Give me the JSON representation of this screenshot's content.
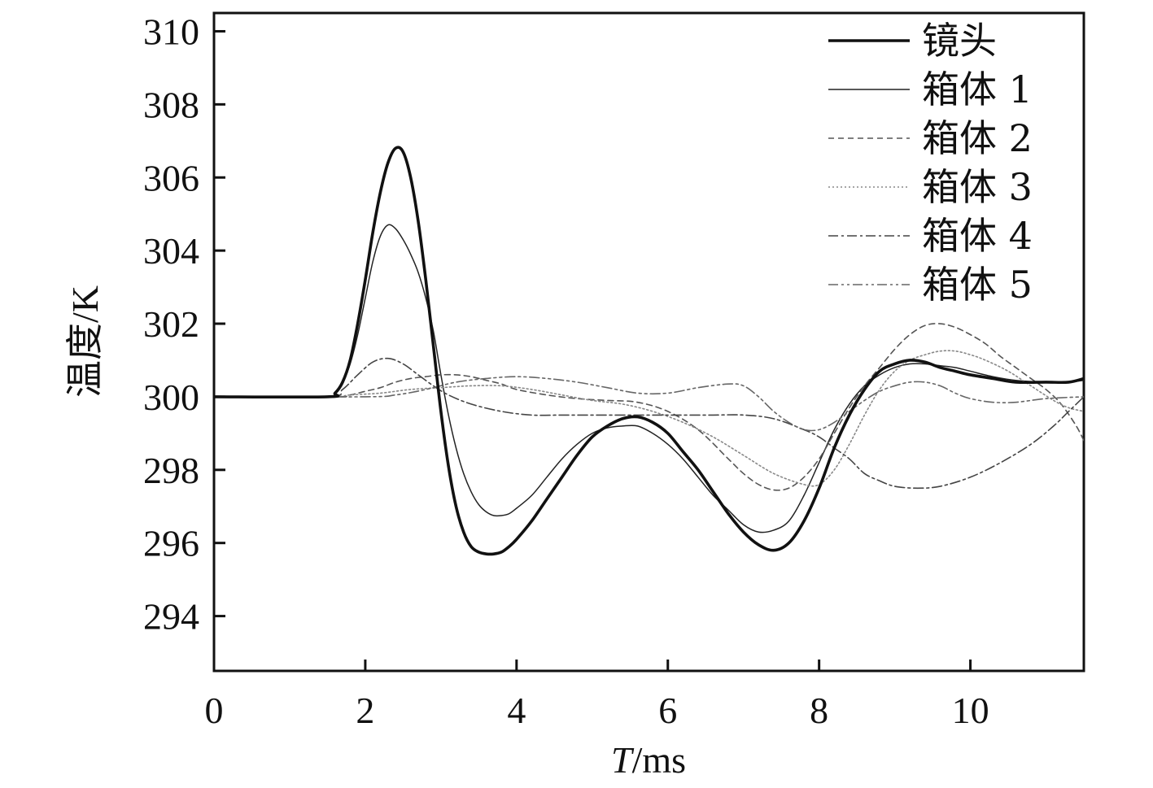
{
  "chart_data": {
    "type": "line",
    "xlabel": "T/ms",
    "xlabel_parts": {
      "italic": "T",
      "rest": "/ms"
    },
    "ylabel": "温度/K",
    "xlim": [
      0,
      11.5
    ],
    "ylim": [
      292.5,
      310.5
    ],
    "xticks": [
      0,
      2,
      4,
      6,
      8,
      10
    ],
    "yticks": [
      294,
      296,
      298,
      300,
      302,
      304,
      306,
      308,
      310
    ],
    "grid": false,
    "legend_position": "top-right",
    "series": [
      {
        "name": "镜头",
        "color": "#111111",
        "style": "solid-thick",
        "points": [
          [
            0,
            300
          ],
          [
            1.5,
            300
          ],
          [
            1.6,
            300.1
          ],
          [
            1.7,
            300.4
          ],
          [
            1.8,
            301
          ],
          [
            1.9,
            302
          ],
          [
            2.0,
            303.2
          ],
          [
            2.1,
            304.5
          ],
          [
            2.2,
            305.6
          ],
          [
            2.3,
            306.4
          ],
          [
            2.4,
            306.8
          ],
          [
            2.5,
            306.7
          ],
          [
            2.6,
            306.0
          ],
          [
            2.7,
            304.8
          ],
          [
            2.8,
            303.2
          ],
          [
            2.9,
            301.4
          ],
          [
            3.0,
            299.6
          ],
          [
            3.1,
            298.1
          ],
          [
            3.2,
            297.0
          ],
          [
            3.3,
            296.3
          ],
          [
            3.4,
            295.9
          ],
          [
            3.5,
            295.75
          ],
          [
            3.6,
            295.7
          ],
          [
            3.7,
            295.7
          ],
          [
            3.8,
            295.75
          ],
          [
            3.9,
            295.9
          ],
          [
            4.0,
            296.1
          ],
          [
            4.2,
            296.6
          ],
          [
            4.4,
            297.2
          ],
          [
            4.6,
            297.8
          ],
          [
            4.8,
            298.4
          ],
          [
            5.0,
            298.9
          ],
          [
            5.2,
            299.2
          ],
          [
            5.4,
            299.4
          ],
          [
            5.6,
            299.45
          ],
          [
            5.8,
            299.3
          ],
          [
            6.0,
            299.0
          ],
          [
            6.2,
            298.5
          ],
          [
            6.4,
            298.0
          ],
          [
            6.6,
            297.4
          ],
          [
            6.8,
            296.8
          ],
          [
            7.0,
            296.3
          ],
          [
            7.2,
            295.95
          ],
          [
            7.4,
            295.8
          ],
          [
            7.6,
            296.0
          ],
          [
            7.8,
            296.6
          ],
          [
            8.0,
            297.5
          ],
          [
            8.2,
            298.6
          ],
          [
            8.4,
            299.5
          ],
          [
            8.6,
            300.2
          ],
          [
            8.8,
            300.7
          ],
          [
            9.0,
            300.9
          ],
          [
            9.2,
            301.0
          ],
          [
            9.4,
            300.95
          ],
          [
            9.6,
            300.8
          ],
          [
            9.8,
            300.7
          ],
          [
            10.0,
            300.6
          ],
          [
            10.3,
            300.5
          ],
          [
            10.6,
            300.4
          ],
          [
            11.0,
            300.4
          ],
          [
            11.3,
            300.4
          ],
          [
            11.5,
            300.5
          ]
        ]
      },
      {
        "name": "箱体 1",
        "color": "#222222",
        "style": "solid-thin",
        "points": [
          [
            0,
            300
          ],
          [
            1.5,
            300
          ],
          [
            1.6,
            300.1
          ],
          [
            1.7,
            300.4
          ],
          [
            1.8,
            300.9
          ],
          [
            1.9,
            301.7
          ],
          [
            2.0,
            302.7
          ],
          [
            2.1,
            303.7
          ],
          [
            2.2,
            304.4
          ],
          [
            2.3,
            304.7
          ],
          [
            2.4,
            304.6
          ],
          [
            2.5,
            304.3
          ],
          [
            2.6,
            303.9
          ],
          [
            2.7,
            303.4
          ],
          [
            2.8,
            302.7
          ],
          [
            2.9,
            301.8
          ],
          [
            3.0,
            300.6
          ],
          [
            3.1,
            299.5
          ],
          [
            3.2,
            298.6
          ],
          [
            3.3,
            297.9
          ],
          [
            3.4,
            297.4
          ],
          [
            3.5,
            297.05
          ],
          [
            3.6,
            296.85
          ],
          [
            3.7,
            296.75
          ],
          [
            3.8,
            296.75
          ],
          [
            3.9,
            296.8
          ],
          [
            4.0,
            296.95
          ],
          [
            4.2,
            297.3
          ],
          [
            4.4,
            297.8
          ],
          [
            4.6,
            298.3
          ],
          [
            4.8,
            298.7
          ],
          [
            5.0,
            299.0
          ],
          [
            5.2,
            299.15
          ],
          [
            5.4,
            299.2
          ],
          [
            5.6,
            299.2
          ],
          [
            5.8,
            299.0
          ],
          [
            6.0,
            298.7
          ],
          [
            6.2,
            298.3
          ],
          [
            6.4,
            297.8
          ],
          [
            6.6,
            297.3
          ],
          [
            6.8,
            296.9
          ],
          [
            7.0,
            296.5
          ],
          [
            7.2,
            296.3
          ],
          [
            7.4,
            296.35
          ],
          [
            7.6,
            296.6
          ],
          [
            7.8,
            297.3
          ],
          [
            8.0,
            298.2
          ],
          [
            8.2,
            299.1
          ],
          [
            8.4,
            299.8
          ],
          [
            8.6,
            300.3
          ],
          [
            8.8,
            300.6
          ],
          [
            9.0,
            300.8
          ],
          [
            9.2,
            300.9
          ],
          [
            9.4,
            300.9
          ],
          [
            9.6,
            300.85
          ],
          [
            9.8,
            300.8
          ],
          [
            10.0,
            300.7
          ],
          [
            10.3,
            300.55
          ],
          [
            10.6,
            300.45
          ],
          [
            11.0,
            300.4
          ],
          [
            11.3,
            300.4
          ],
          [
            11.5,
            300.45
          ]
        ]
      },
      {
        "name": "箱体 2",
        "color": "#555555",
        "style": "dashed",
        "points": [
          [
            0,
            300
          ],
          [
            1.6,
            300
          ],
          [
            1.8,
            300.05
          ],
          [
            2.0,
            300.15
          ],
          [
            2.2,
            300.25
          ],
          [
            2.4,
            300.4
          ],
          [
            2.6,
            300.5
          ],
          [
            2.8,
            300.55
          ],
          [
            3.0,
            300.6
          ],
          [
            3.2,
            300.6
          ],
          [
            3.4,
            300.55
          ],
          [
            3.6,
            300.45
          ],
          [
            3.8,
            300.35
          ],
          [
            4.0,
            300.2
          ],
          [
            4.4,
            300.05
          ],
          [
            4.8,
            299.95
          ],
          [
            5.2,
            299.9
          ],
          [
            5.6,
            299.85
          ],
          [
            6.0,
            299.6
          ],
          [
            6.4,
            299.1
          ],
          [
            6.8,
            298.3
          ],
          [
            7.0,
            297.9
          ],
          [
            7.2,
            297.6
          ],
          [
            7.4,
            297.45
          ],
          [
            7.6,
            297.5
          ],
          [
            7.8,
            297.8
          ],
          [
            8.0,
            298.3
          ],
          [
            8.2,
            299.0
          ],
          [
            8.4,
            299.7
          ],
          [
            8.6,
            300.3
          ],
          [
            8.8,
            300.8
          ],
          [
            9.0,
            301.3
          ],
          [
            9.2,
            301.7
          ],
          [
            9.4,
            301.95
          ],
          [
            9.6,
            302.0
          ],
          [
            9.8,
            301.9
          ],
          [
            10.0,
            301.7
          ],
          [
            10.2,
            301.45
          ],
          [
            10.4,
            301.1
          ],
          [
            10.6,
            300.8
          ],
          [
            10.8,
            300.5
          ],
          [
            11.0,
            300.2
          ],
          [
            11.2,
            299.8
          ],
          [
            11.4,
            299.2
          ],
          [
            11.5,
            298.8
          ]
        ]
      },
      {
        "name": "箱体 3",
        "color": "#888888",
        "style": "dotted",
        "points": [
          [
            0,
            300
          ],
          [
            1.5,
            300
          ],
          [
            1.8,
            300.05
          ],
          [
            2.2,
            300.1
          ],
          [
            2.6,
            300.2
          ],
          [
            3.0,
            300.25
          ],
          [
            3.4,
            300.3
          ],
          [
            3.8,
            300.3
          ],
          [
            4.2,
            300.2
          ],
          [
            4.6,
            300.05
          ],
          [
            5.0,
            299.9
          ],
          [
            5.4,
            299.8
          ],
          [
            5.8,
            299.6
          ],
          [
            6.2,
            299.3
          ],
          [
            6.6,
            298.9
          ],
          [
            7.0,
            298.4
          ],
          [
            7.4,
            297.9
          ],
          [
            7.8,
            297.6
          ],
          [
            8.0,
            297.6
          ],
          [
            8.2,
            298.0
          ],
          [
            8.4,
            298.7
          ],
          [
            8.6,
            299.5
          ],
          [
            8.8,
            300.2
          ],
          [
            9.0,
            300.7
          ],
          [
            9.2,
            301.0
          ],
          [
            9.4,
            301.15
          ],
          [
            9.6,
            301.25
          ],
          [
            9.8,
            301.25
          ],
          [
            10.0,
            301.15
          ],
          [
            10.2,
            301.0
          ],
          [
            10.5,
            300.7
          ],
          [
            10.8,
            300.3
          ],
          [
            11.1,
            299.9
          ],
          [
            11.3,
            299.7
          ],
          [
            11.5,
            299.6
          ]
        ]
      },
      {
        "name": "箱体 4",
        "color": "#444444",
        "style": "dashdot",
        "points": [
          [
            0,
            300
          ],
          [
            1.5,
            300
          ],
          [
            1.7,
            300.2
          ],
          [
            1.9,
            300.6
          ],
          [
            2.1,
            300.95
          ],
          [
            2.3,
            301.05
          ],
          [
            2.5,
            300.9
          ],
          [
            2.7,
            300.6
          ],
          [
            2.9,
            300.3
          ],
          [
            3.1,
            300.05
          ],
          [
            3.4,
            299.8
          ],
          [
            3.8,
            299.6
          ],
          [
            4.2,
            299.5
          ],
          [
            4.6,
            299.5
          ],
          [
            5.0,
            299.5
          ],
          [
            5.4,
            299.5
          ],
          [
            5.8,
            299.5
          ],
          [
            6.2,
            299.5
          ],
          [
            6.6,
            299.5
          ],
          [
            7.0,
            299.5
          ],
          [
            7.4,
            299.4
          ],
          [
            7.8,
            299.1
          ],
          [
            8.0,
            298.9
          ],
          [
            8.2,
            298.6
          ],
          [
            8.4,
            298.3
          ],
          [
            8.6,
            297.9
          ],
          [
            8.8,
            297.7
          ],
          [
            9.0,
            297.55
          ],
          [
            9.3,
            297.5
          ],
          [
            9.6,
            297.55
          ],
          [
            10.0,
            297.8
          ],
          [
            10.4,
            298.2
          ],
          [
            10.8,
            298.7
          ],
          [
            11.1,
            299.2
          ],
          [
            11.3,
            299.6
          ],
          [
            11.5,
            300.0
          ]
        ]
      },
      {
        "name": "箱体 5",
        "color": "#666666",
        "style": "dashdotdot",
        "points": [
          [
            0,
            300
          ],
          [
            2.0,
            300
          ],
          [
            2.4,
            300.05
          ],
          [
            2.8,
            300.2
          ],
          [
            3.2,
            300.4
          ],
          [
            3.6,
            300.5
          ],
          [
            4.0,
            300.55
          ],
          [
            4.4,
            300.5
          ],
          [
            4.8,
            300.4
          ],
          [
            5.2,
            300.25
          ],
          [
            5.6,
            300.1
          ],
          [
            6.0,
            300.1
          ],
          [
            6.4,
            300.25
          ],
          [
            6.8,
            300.35
          ],
          [
            7.0,
            300.3
          ],
          [
            7.2,
            300.0
          ],
          [
            7.4,
            299.6
          ],
          [
            7.6,
            299.3
          ],
          [
            7.8,
            299.1
          ],
          [
            8.0,
            299.1
          ],
          [
            8.2,
            299.3
          ],
          [
            8.4,
            299.6
          ],
          [
            8.6,
            299.9
          ],
          [
            8.8,
            300.15
          ],
          [
            9.0,
            300.3
          ],
          [
            9.2,
            300.4
          ],
          [
            9.4,
            300.4
          ],
          [
            9.6,
            300.3
          ],
          [
            9.8,
            300.1
          ],
          [
            10.0,
            299.95
          ],
          [
            10.3,
            299.85
          ],
          [
            10.6,
            299.85
          ],
          [
            11.0,
            299.95
          ],
          [
            11.5,
            300.0
          ]
        ]
      }
    ]
  }
}
